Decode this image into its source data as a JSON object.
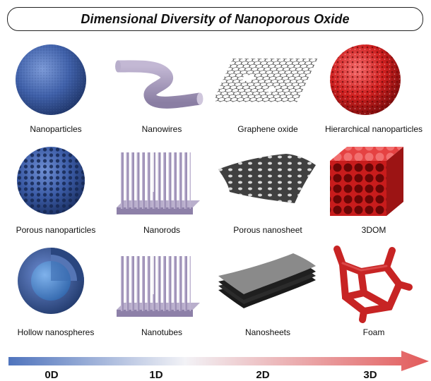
{
  "title": "Dimensional Diversity of Nanoporous Oxide",
  "items": [
    {
      "label": "Nanoparticles",
      "icon": "solid-sphere-icon"
    },
    {
      "label": "Nanowires",
      "icon": "nanowire-icon"
    },
    {
      "label": "Graphene oxide",
      "icon": "graphene-sheet-icon"
    },
    {
      "label": "Hierarchical nanoparticles",
      "icon": "hierarchical-sphere-icon"
    },
    {
      "label": "Porous nanoparticles",
      "icon": "porous-sphere-icon"
    },
    {
      "label": "Nanorods",
      "icon": "nanorod-array-icon"
    },
    {
      "label": "Porous nanosheet",
      "icon": "porous-sheet-icon"
    },
    {
      "label": "3DOM",
      "icon": "3dom-cube-icon"
    },
    {
      "label": "Hollow nanospheres",
      "icon": "hollow-sphere-icon"
    },
    {
      "label": "Nanotubes",
      "icon": "nanotube-array-icon"
    },
    {
      "label": "Nanosheets",
      "icon": "stacked-sheets-icon"
    },
    {
      "label": "Foam",
      "icon": "foam-icon"
    }
  ],
  "dimension_scale": {
    "labels": [
      "0D",
      "1D",
      "2D",
      "3D"
    ],
    "colors": {
      "start": "#4f74bd",
      "mid": "#f2f2f6",
      "end": "#e25a5a"
    }
  },
  "colors": {
    "blue": "#3e5fa8",
    "lavender": "#a79bbd",
    "graphite": "#555555",
    "red": "#d12b2b"
  }
}
